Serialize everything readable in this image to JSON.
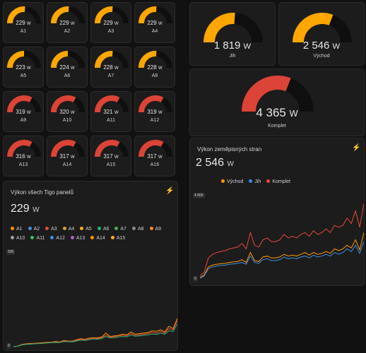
{
  "panels": [
    {
      "label": "A1",
      "value": "229",
      "unit": "W",
      "fraction": 0.52,
      "color": "#ffa600"
    },
    {
      "label": "A2",
      "value": "229",
      "unit": "W",
      "fraction": 0.52,
      "color": "#ffa600"
    },
    {
      "label": "A3",
      "value": "229",
      "unit": "W",
      "fraction": 0.52,
      "color": "#ffa600"
    },
    {
      "label": "A4",
      "value": "229",
      "unit": "W",
      "fraction": 0.52,
      "color": "#ffa600"
    },
    {
      "label": "A5",
      "value": "223",
      "unit": "W",
      "fraction": 0.5,
      "color": "#ffa600"
    },
    {
      "label": "A6",
      "value": "224",
      "unit": "W",
      "fraction": 0.5,
      "color": "#ffa600"
    },
    {
      "label": "A7",
      "value": "228",
      "unit": "W",
      "fraction": 0.52,
      "color": "#ffa600"
    },
    {
      "label": "A8",
      "value": "228",
      "unit": "W",
      "fraction": 0.52,
      "color": "#ffa600"
    },
    {
      "label": "A9",
      "value": "319",
      "unit": "W",
      "fraction": 0.66,
      "color": "#db4437"
    },
    {
      "label": "A10",
      "value": "320",
      "unit": "W",
      "fraction": 0.66,
      "color": "#db4437"
    },
    {
      "label": "A11",
      "value": "321",
      "unit": "W",
      "fraction": 0.66,
      "color": "#db4437"
    },
    {
      "label": "A12",
      "value": "319",
      "unit": "W",
      "fraction": 0.66,
      "color": "#db4437"
    },
    {
      "label": "A13",
      "value": "316",
      "unit": "W",
      "fraction": 0.66,
      "color": "#db4437"
    },
    {
      "label": "A14",
      "value": "317",
      "unit": "W",
      "fraction": 0.66,
      "color": "#db4437"
    },
    {
      "label": "A15",
      "value": "317",
      "unit": "W",
      "fraction": 0.66,
      "color": "#db4437"
    },
    {
      "label": "A16",
      "value": "317",
      "unit": "W",
      "fraction": 0.66,
      "color": "#db4437"
    }
  ],
  "summary": {
    "jih": {
      "label": "Jih",
      "value": "1 819",
      "unit": "W",
      "fraction": 0.52,
      "color": "#ffa600"
    },
    "vychod": {
      "label": "Východ",
      "value": "2 546",
      "unit": "W",
      "fraction": 0.62,
      "color": "#ffa600"
    },
    "komplet": {
      "label": "Komplet",
      "value": "4 365",
      "unit": "W",
      "fraction": 0.62,
      "color": "#db4437"
    }
  },
  "chart_tigo": {
    "title": "Výkon všech Tigo panelů",
    "value": "229",
    "unit": "W",
    "bolt_icon": "lightning-bolt-icon",
    "y_axis_chip": "500",
    "y_zero_chip": "0",
    "legend": [
      {
        "name": "A1",
        "color": "#ff9800"
      },
      {
        "name": "A2",
        "color": "#3f8fe0"
      },
      {
        "name": "A3",
        "color": "#e5483b"
      },
      {
        "name": "A4",
        "color": "#d9a02a"
      },
      {
        "name": "A5",
        "color": "#f2b01e"
      },
      {
        "name": "A6",
        "color": "#2bb673"
      },
      {
        "name": "A7",
        "color": "#4caf50"
      },
      {
        "name": "A8",
        "color": "#8a8a8a"
      },
      {
        "name": "A9",
        "color": "#f08a24"
      },
      {
        "name": "A10",
        "color": "#9e9e9e"
      },
      {
        "name": "A11",
        "color": "#3ebd6c"
      },
      {
        "name": "A12",
        "color": "#3f8fe0"
      },
      {
        "name": "A13",
        "color": "#b05cc4"
      },
      {
        "name": "A14",
        "color": "#ff9800"
      },
      {
        "name": "A15",
        "color": "#f2b01e"
      }
    ]
  },
  "chart_directions": {
    "title": "Výkon zeměpisných stran",
    "value": "2 546",
    "unit": "W",
    "bolt_icon": "lightning-bolt-icon",
    "y_axis_chip": "4 000",
    "y_zero_chip": "0",
    "legend": [
      {
        "name": "Východ",
        "color": "#ff9800"
      },
      {
        "name": "Jih",
        "color": "#3f8fe0"
      },
      {
        "name": "Komplet",
        "color": "#e5483b"
      }
    ]
  },
  "chart_data": [
    {
      "type": "line",
      "title": "Výkon všech Tigo panelů",
      "ylim": [
        0,
        700
      ],
      "x": [
        0,
        1,
        2,
        3,
        4,
        5,
        6,
        7,
        8,
        9,
        10,
        11,
        12,
        13,
        14,
        15,
        16,
        17,
        18,
        19,
        20,
        21,
        22,
        23,
        24,
        25,
        26,
        27,
        28,
        29,
        30,
        31,
        32,
        33,
        34,
        35,
        36,
        37,
        38,
        39
      ],
      "series": [
        {
          "name": "A1",
          "color": "#ff9800",
          "values": [
            0,
            5,
            20,
            25,
            28,
            30,
            32,
            35,
            38,
            40,
            45,
            42,
            55,
            50,
            48,
            60,
            70,
            65,
            75,
            80,
            78,
            85,
            120,
            90,
            95,
            100,
            110,
            105,
            130,
            110,
            115,
            120,
            125,
            140,
            135,
            150,
            130,
            180,
            160,
            250
          ]
        },
        {
          "name": "A9",
          "color": "#e5483b",
          "values": [
            0,
            5,
            18,
            22,
            25,
            28,
            30,
            32,
            35,
            38,
            40,
            40,
            50,
            48,
            45,
            55,
            65,
            62,
            70,
            75,
            72,
            80,
            100,
            85,
            88,
            95,
            100,
            98,
            115,
            100,
            105,
            110,
            115,
            125,
            120,
            135,
            120,
            160,
            150,
            230
          ]
        },
        {
          "name": "A6",
          "color": "#2bb673",
          "values": [
            0,
            4,
            15,
            20,
            22,
            25,
            27,
            30,
            32,
            35,
            37,
            36,
            45,
            44,
            42,
            50,
            58,
            55,
            62,
            68,
            65,
            72,
            90,
            78,
            80,
            85,
            90,
            88,
            102,
            92,
            95,
            100,
            104,
            112,
            108,
            120,
            110,
            140,
            135,
            200
          ]
        }
      ]
    },
    {
      "type": "line",
      "title": "Výkon zeměpisných stran",
      "ylim": [
        0,
        5000
      ],
      "x": [
        0,
        1,
        2,
        3,
        4,
        5,
        6,
        7,
        8,
        9,
        10,
        11,
        12,
        13,
        14,
        15,
        16,
        17,
        18,
        19,
        20,
        21,
        22,
        23,
        24,
        25,
        26,
        27,
        28,
        29,
        30,
        31,
        32,
        33,
        34,
        35,
        36,
        37,
        38,
        39
      ],
      "series": [
        {
          "name": "Komplet",
          "color": "#e5483b",
          "values": [
            200,
            400,
            1200,
            1400,
            1500,
            1550,
            1600,
            1700,
            1750,
            1800,
            2000,
            1700,
            2600,
            1900,
            1800,
            2200,
            2300,
            2100,
            2100,
            2200,
            2500,
            2300,
            2400,
            2300,
            2500,
            2600,
            2400,
            2700,
            2500,
            2600,
            2800,
            2600,
            3000,
            2900,
            3000,
            3400,
            3100,
            3800,
            2900,
            4200
          ]
        },
        {
          "name": "Východ",
          "color": "#ff9800",
          "values": [
            100,
            250,
            700,
            800,
            850,
            880,
            900,
            950,
            980,
            1000,
            1100,
            950,
            1500,
            1050,
            1000,
            1250,
            1300,
            1200,
            1200,
            1250,
            1400,
            1300,
            1350,
            1300,
            1400,
            1500,
            1350,
            1500,
            1400,
            1450,
            1550,
            1450,
            1700,
            1600,
            1700,
            1900,
            1750,
            2200,
            1650,
            2600
          ]
        },
        {
          "name": "Jih",
          "color": "#3f8fe0",
          "values": [
            80,
            200,
            600,
            700,
            750,
            780,
            800,
            850,
            870,
            900,
            950,
            850,
            1300,
            950,
            900,
            1100,
            1150,
            1050,
            1050,
            1100,
            1250,
            1150,
            1200,
            1150,
            1250,
            1300,
            1200,
            1350,
            1250,
            1300,
            1400,
            1300,
            1500,
            1400,
            1500,
            1700,
            1550,
            1900,
            1450,
            2100
          ]
        }
      ]
    }
  ]
}
